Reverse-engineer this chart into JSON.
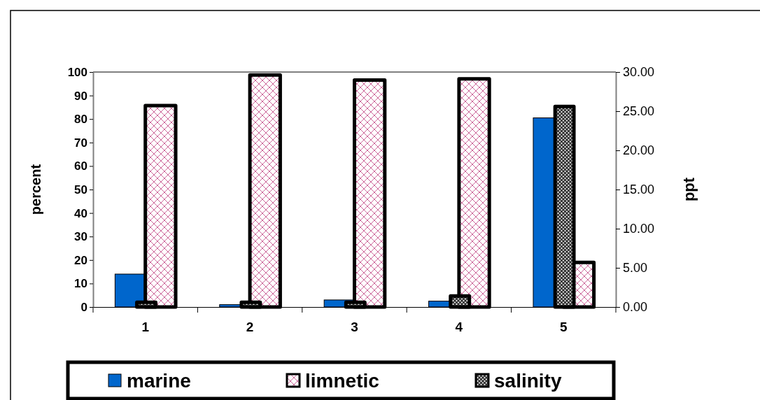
{
  "chart_data": {
    "type": "bar",
    "categories": [
      "1",
      "2",
      "3",
      "4",
      "5"
    ],
    "ylabel": "percent",
    "y2label": "ppt",
    "ylim": [
      0,
      100
    ],
    "yticks": [
      0,
      10,
      20,
      30,
      40,
      50,
      60,
      70,
      80,
      90,
      100
    ],
    "y2lim": [
      0,
      30
    ],
    "y2ticks": [
      {
        "value": 0,
        "label": "0.00"
      },
      {
        "value": 5,
        "label": "5.00"
      },
      {
        "value": 10,
        "label": "10.00"
      },
      {
        "value": 15,
        "label": "15.00"
      },
      {
        "value": 20,
        "label": "20.00"
      },
      {
        "value": 25,
        "label": "25.00"
      },
      {
        "value": 30,
        "label": "30.00"
      }
    ],
    "series": [
      {
        "name": "marine",
        "color": "#0066cc",
        "values": [
          14,
          1,
          3,
          2.5,
          80.5
        ]
      },
      {
        "name": "limnetic",
        "color": "#cc6699",
        "values": [
          85.7,
          98.7,
          96.6,
          97.1,
          19
        ]
      },
      {
        "name": "salinity",
        "color": "#333333",
        "axis": "y2",
        "values": [
          0.6,
          0.6,
          0.6,
          1.4,
          25.6
        ]
      }
    ],
    "legend": "bottom",
    "grid": false
  }
}
